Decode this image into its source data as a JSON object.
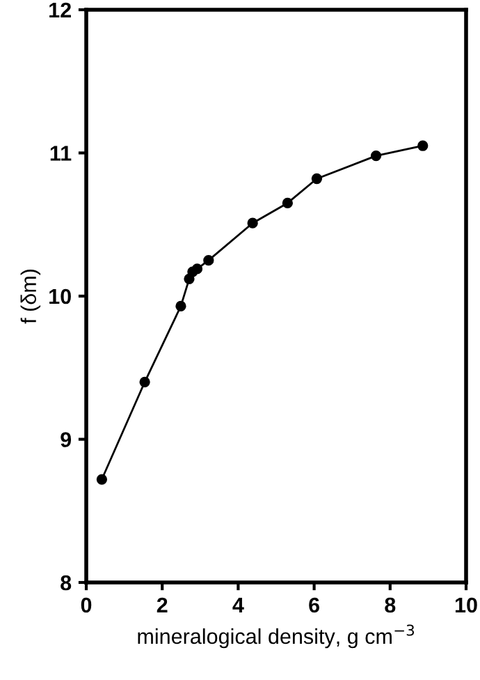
{
  "chart_data": {
    "type": "line",
    "xlabel": "mineralogical density, g cm$^{−3}$",
    "ylabel": "f (δm)",
    "x": [
      0.41,
      1.54,
      2.49,
      2.71,
      2.8,
      2.92,
      3.22,
      4.38,
      5.3,
      6.07,
      7.63,
      8.86
    ],
    "series": [
      {
        "color": "#000000",
        "values": [
          8.72,
          9.4,
          9.93,
          10.12,
          10.17,
          10.19,
          10.25,
          10.51,
          10.65,
          10.82,
          10.98,
          11.05
        ]
      }
    ],
    "xlim": [
      0,
      10
    ],
    "xticks": [
      0,
      2,
      4,
      6,
      8,
      10
    ],
    "ylim": [
      8,
      12
    ],
    "yticks": [
      8,
      9,
      10,
      11,
      12
    ],
    "marker": "circle",
    "line_style": "solid",
    "grid": false,
    "legend": false
  }
}
